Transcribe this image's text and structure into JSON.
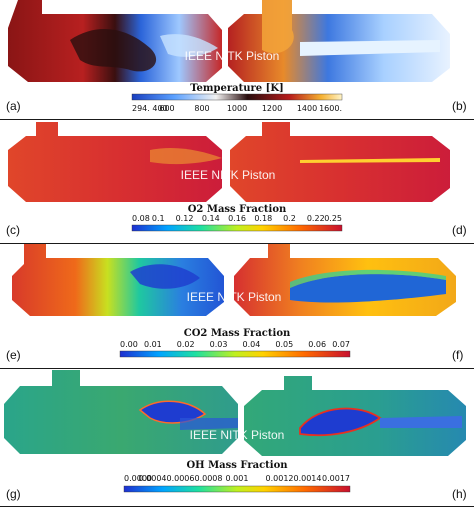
{
  "watermark": "IEEE NITK Piston",
  "colors": {
    "thermal": [
      "#1a3fbf",
      "#5aa0ff",
      "#f2f2f2",
      "#f5b030",
      "#b71c1c",
      "#2a0e0e"
    ],
    "jet": [
      "#1f2fd0",
      "#00a4ff",
      "#1fe0a0",
      "#bff020",
      "#ffd200",
      "#ff6a00",
      "#c8102e"
    ],
    "frame": "#1a1a1a"
  },
  "panels": [
    {
      "title": "Temperature [K]",
      "ticks": [
        "294. 400",
        "600",
        "800",
        "1000",
        "1200",
        "1400",
        "1600."
      ],
      "left_label": "(a)",
      "right_label": "(b)",
      "scale": "thermal"
    },
    {
      "title": "O2 Mass Fraction",
      "ticks": [
        "0.08",
        "0.1",
        "0.12",
        "0.14",
        "0.16",
        "0.18",
        "0.2",
        "0.22",
        "0.25"
      ],
      "left_label": "(c)",
      "right_label": "(d)",
      "scale": "jet"
    },
    {
      "title": "CO2 Mass Fraction",
      "ticks": [
        "0.00",
        "0.01",
        "0.02",
        "0.03",
        "0.04",
        "0.05",
        "0.06",
        "0.07"
      ],
      "left_label": "(e)",
      "right_label": "(f)",
      "scale": "jet"
    },
    {
      "title": "OH Mass Fraction",
      "ticks": [
        "0.0000",
        "0.00040.00060.0008",
        "0.001",
        "0.00120.0014",
        "0.0017"
      ],
      "left_label": "(g)",
      "right_label": "(h)",
      "scale": "jet"
    }
  ]
}
